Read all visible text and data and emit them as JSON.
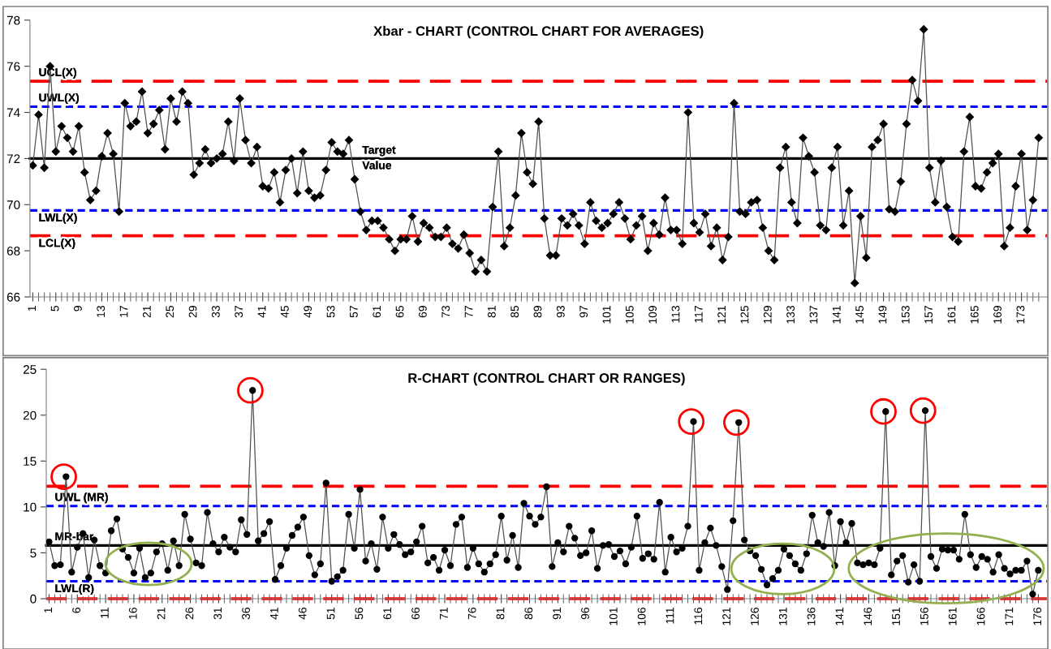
{
  "chart_data": [
    {
      "type": "line",
      "title": "Xbar - CHART (CONTROL CHART FOR AVERAGES)",
      "x": [
        1,
        2,
        3,
        4,
        5,
        6,
        7,
        8,
        9,
        10,
        11,
        12,
        13,
        14,
        15,
        16,
        17,
        18,
        19,
        20,
        21,
        22,
        23,
        24,
        25,
        26,
        27,
        28,
        29,
        30,
        31,
        32,
        33,
        34,
        35,
        36,
        37,
        38,
        39,
        40,
        41,
        42,
        43,
        44,
        45,
        46,
        47,
        48,
        49,
        50,
        51,
        52,
        53,
        54,
        55,
        56,
        57,
        58,
        59,
        60,
        61,
        62,
        63,
        64,
        65,
        66,
        67,
        68,
        69,
        70,
        71,
        72,
        73,
        74,
        75,
        76,
        77,
        78,
        79,
        80,
        81,
        82,
        83,
        84,
        85,
        86,
        87,
        88,
        89,
        90,
        91,
        92,
        93,
        94,
        95,
        96,
        97,
        98,
        99,
        100,
        101,
        102,
        103,
        104,
        105,
        106,
        107,
        108,
        109,
        110,
        111,
        112,
        113,
        114,
        115,
        116,
        117,
        118,
        119,
        120,
        121,
        122,
        123,
        124,
        125,
        126,
        127,
        128,
        129,
        130,
        131,
        132,
        133,
        134,
        135,
        136,
        137,
        138,
        139,
        140,
        141,
        142,
        143,
        144,
        145,
        146,
        147,
        148,
        149,
        150,
        151,
        152,
        153,
        154,
        155,
        156,
        157,
        158,
        159,
        160,
        161,
        162,
        163,
        164,
        165,
        166,
        167,
        168,
        169,
        170,
        171,
        172,
        173,
        174,
        175,
        176
      ],
      "series": [
        {
          "color": "#000000",
          "values": [
            71.7,
            73.9,
            71.6,
            76.0,
            72.3,
            73.4,
            72.9,
            72.3,
            73.4,
            71.4,
            70.2,
            70.6,
            72.1,
            73.1,
            72.2,
            69.7,
            74.4,
            73.4,
            73.6,
            74.9,
            73.1,
            73.5,
            74.1,
            72.4,
            74.6,
            73.6,
            74.9,
            74.4,
            71.3,
            71.8,
            72.4,
            71.8,
            72.0,
            72.2,
            73.6,
            71.9,
            74.6,
            72.8,
            71.8,
            72.5,
            70.8,
            70.7,
            71.4,
            70.1,
            71.5,
            72.0,
            70.5,
            72.3,
            70.6,
            70.3,
            70.4,
            71.5,
            72.7,
            72.3,
            72.2,
            72.8,
            71.1,
            69.7,
            68.9,
            69.3,
            69.3,
            69.0,
            68.5,
            68.0,
            68.5,
            68.5,
            69.5,
            68.4,
            69.2,
            69.0,
            68.6,
            68.6,
            69.0,
            68.3,
            68.1,
            68.7,
            67.9,
            67.1,
            67.6,
            67.1,
            69.9,
            72.3,
            68.2,
            69.0,
            70.4,
            73.1,
            71.4,
            70.9,
            73.6,
            69.4,
            67.8,
            67.8,
            69.4,
            69.1,
            69.6,
            69.1,
            68.3,
            70.1,
            69.3,
            69.0,
            69.2,
            69.6,
            70.1,
            69.4,
            68.5,
            69.1,
            69.5,
            68.0,
            69.2,
            68.7,
            70.3,
            68.9,
            68.9,
            68.3,
            74.0,
            69.2,
            68.8,
            69.6,
            68.2,
            69.0,
            67.6,
            68.6,
            74.4,
            69.7,
            69.6,
            70.1,
            70.2,
            69.0,
            68.0,
            67.6,
            71.6,
            72.5,
            70.1,
            69.2,
            72.9,
            72.1,
            71.4,
            69.1,
            68.9,
            71.6,
            72.5,
            69.1,
            70.6,
            66.6,
            69.5,
            67.7,
            72.5,
            72.8,
            73.5,
            69.8,
            69.7,
            71.0,
            73.5,
            75.4,
            74.5,
            77.6,
            71.6,
            70.1,
            71.9,
            69.9,
            68.6,
            68.4,
            72.3,
            73.8,
            70.8,
            70.7,
            71.4,
            71.8,
            72.2,
            68.2,
            69.0,
            70.8,
            72.2,
            68.9,
            70.2,
            72.9
          ]
        }
      ],
      "xlim": [
        0.5,
        177.5
      ],
      "xticks": [
        1,
        5,
        9,
        13,
        17,
        21,
        25,
        29,
        33,
        37,
        41,
        45,
        49,
        53,
        57,
        61,
        65,
        69,
        73,
        77,
        81,
        85,
        89,
        93,
        97,
        101,
        105,
        109,
        113,
        117,
        121,
        125,
        129,
        133,
        137,
        141,
        145,
        149,
        153,
        157,
        161,
        165,
        169,
        173
      ],
      "ylim": [
        66,
        78
      ],
      "yticks": [
        66,
        68,
        70,
        72,
        74,
        76,
        78
      ],
      "ref_lines": [
        {
          "axis": "y",
          "value": 75.35,
          "label": "UCL(X)",
          "color": "#ff0000",
          "line_style": "dashed"
        },
        {
          "axis": "y",
          "value": 74.25,
          "label": "UWL(X)",
          "color": "#0000ff",
          "line_style": "dotted"
        },
        {
          "axis": "y",
          "value": 72.0,
          "label": "Target Value",
          "color": "#000000",
          "line_style": "solid"
        },
        {
          "axis": "y",
          "value": 69.75,
          "label": "LWL(X)",
          "color": "#0000ff",
          "line_style": "dotted"
        },
        {
          "axis": "y",
          "value": 68.65,
          "label": "LCL(X)",
          "color": "#ff0000",
          "line_style": "dashed"
        }
      ],
      "marker": "diamond",
      "grid": false,
      "legend": false
    },
    {
      "type": "line",
      "title": "R-CHART (CONTROL CHART OR RANGES)",
      "x": [
        1,
        2,
        3,
        4,
        5,
        6,
        7,
        8,
        9,
        10,
        11,
        12,
        13,
        14,
        15,
        16,
        17,
        18,
        19,
        20,
        21,
        22,
        23,
        24,
        25,
        26,
        27,
        28,
        29,
        30,
        31,
        32,
        33,
        34,
        35,
        36,
        37,
        38,
        39,
        40,
        41,
        42,
        43,
        44,
        45,
        46,
        47,
        48,
        49,
        50,
        51,
        52,
        53,
        54,
        55,
        56,
        57,
        58,
        59,
        60,
        61,
        62,
        63,
        64,
        65,
        66,
        67,
        68,
        69,
        70,
        71,
        72,
        73,
        74,
        75,
        76,
        77,
        78,
        79,
        80,
        81,
        82,
        83,
        84,
        85,
        86,
        87,
        88,
        89,
        90,
        91,
        92,
        93,
        94,
        95,
        96,
        97,
        98,
        99,
        100,
        101,
        102,
        103,
        104,
        105,
        106,
        107,
        108,
        109,
        110,
        111,
        112,
        113,
        114,
        115,
        116,
        117,
        118,
        119,
        120,
        121,
        122,
        123,
        124,
        125,
        126,
        127,
        128,
        129,
        130,
        131,
        132,
        133,
        134,
        135,
        136,
        137,
        138,
        139,
        140,
        141,
        142,
        143,
        144,
        145,
        146,
        147,
        148,
        149,
        150,
        151,
        152,
        153,
        154,
        155,
        156,
        157,
        158,
        159,
        160,
        161,
        162,
        163,
        164,
        165,
        166,
        167,
        168,
        169,
        170,
        171,
        172,
        173,
        174,
        175,
        176
      ],
      "series": [
        {
          "color": "#000000",
          "values": [
            6.2,
            3.6,
            3.7,
            13.3,
            2.9,
            5.6,
            7.1,
            2.3,
            6.4,
            3.6,
            2.8,
            7.4,
            8.7,
            5.4,
            4.5,
            2.8,
            5.5,
            2.3,
            2.8,
            5.1,
            6.0,
            3.1,
            6.3,
            3.6,
            9.2,
            6.5,
            3.9,
            3.6,
            9.4,
            6.0,
            5.1,
            6.7,
            5.6,
            5.1,
            8.6,
            7.0,
            22.7,
            6.3,
            7.1,
            8.4,
            2.1,
            3.6,
            5.5,
            6.9,
            7.8,
            8.9,
            4.7,
            2.6,
            3.8,
            12.6,
            1.9,
            2.4,
            3.1,
            9.2,
            5.5,
            11.9,
            4.1,
            6.0,
            3.2,
            8.9,
            5.5,
            7.0,
            5.9,
            4.8,
            5.1,
            6.2,
            7.9,
            3.9,
            4.5,
            3.1,
            5.3,
            3.6,
            8.1,
            8.9,
            3.4,
            5.5,
            3.8,
            2.9,
            3.8,
            4.8,
            9.0,
            4.2,
            6.9,
            3.4,
            10.4,
            9.0,
            8.1,
            8.9,
            12.2,
            3.5,
            6.1,
            5.1,
            7.9,
            6.6,
            4.7,
            5.0,
            7.4,
            3.3,
            5.8,
            5.9,
            4.6,
            5.2,
            3.8,
            5.6,
            9.0,
            4.4,
            4.9,
            4.3,
            10.5,
            2.9,
            6.7,
            5.1,
            5.5,
            7.9,
            19.3,
            3.1,
            6.1,
            7.7,
            5.8,
            3.5,
            1.0,
            8.5,
            19.2,
            6.4,
            5.2,
            4.7,
            3.2,
            1.5,
            2.2,
            3.1,
            5.4,
            4.7,
            3.8,
            3.1,
            4.9,
            9.1,
            6.1,
            5.7,
            9.4,
            3.6,
            8.4,
            6.1,
            8.2,
            3.9,
            3.7,
            3.9,
            3.7,
            5.5,
            20.4,
            2.6,
            4.1,
            4.7,
            1.8,
            3.7,
            1.9,
            20.5,
            4.6,
            3.3,
            5.4,
            5.3,
            5.3,
            4.3,
            9.2,
            4.8,
            3.4,
            4.6,
            4.3,
            2.9,
            4.8,
            3.3,
            2.7,
            3.1,
            3.1,
            4.1,
            0.5,
            3.1
          ]
        }
      ],
      "xlim": [
        0.5,
        177.5
      ],
      "xticks": [
        1,
        6,
        11,
        16,
        21,
        26,
        31,
        36,
        41,
        46,
        51,
        56,
        61,
        66,
        71,
        76,
        81,
        86,
        91,
        96,
        101,
        106,
        111,
        116,
        121,
        126,
        131,
        136,
        141,
        146,
        151,
        156,
        161,
        166,
        171,
        176
      ],
      "ylim": [
        0,
        25
      ],
      "yticks": [
        0,
        5,
        10,
        15,
        20,
        25
      ],
      "ref_lines": [
        {
          "axis": "y",
          "value": 12.25,
          "color": "#ff0000",
          "line_style": "dashed"
        },
        {
          "axis": "y",
          "value": 10.1,
          "label": "UWL (MR)",
          "color": "#0000ff",
          "line_style": "dotted"
        },
        {
          "axis": "y",
          "value": 5.8,
          "label": "MR-bar",
          "color": "#000000",
          "line_style": "solid"
        },
        {
          "axis": "y",
          "value": 1.9,
          "label": "LWL(R)",
          "color": "#0000ff",
          "line_style": "dotted"
        },
        {
          "axis": "y",
          "value": 0,
          "color": "#ff0000",
          "line_style": "dashed"
        }
      ],
      "marker": "circle",
      "grid": false,
      "legend": false
    }
  ]
}
